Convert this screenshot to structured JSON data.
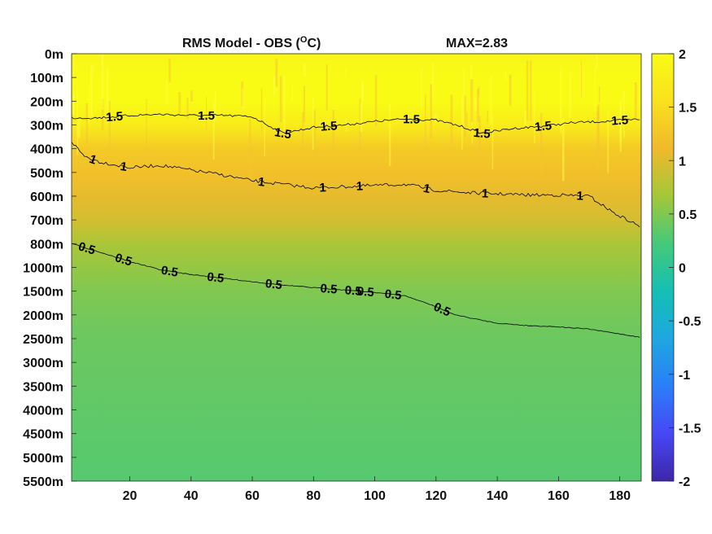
{
  "chart_data": {
    "type": "heatmap",
    "title": "RMS Model - OBS (",
    "title_unit_sup": "O",
    "title_unit_end": "C)",
    "max_label": "MAX=2.83",
    "x": {
      "range": [
        1,
        187
      ],
      "ticks": [
        20,
        40,
        60,
        80,
        100,
        120,
        140,
        160,
        180
      ]
    },
    "y": {
      "type": "categorical-depth",
      "ticks": [
        "0m",
        "100m",
        "200m",
        "300m",
        "400m",
        "500m",
        "600m",
        "700m",
        "800m",
        "1000m",
        "1500m",
        "2000m",
        "2500m",
        "3000m",
        "3500m",
        "4000m",
        "4500m",
        "5000m",
        "5500m"
      ]
    },
    "colorbar": {
      "range": [
        -2,
        2
      ],
      "ticks": [
        "2",
        "1.5",
        "1",
        "0.5",
        "0",
        "-0.5",
        "-1",
        "-1.5",
        "-2"
      ],
      "colormap": "parula",
      "stops": [
        "#3e26a8",
        "#4747f5",
        "#2b7ef8",
        "#1ea7e0",
        "#14bfb4",
        "#45c97a",
        "#a4c739",
        "#f0b92c",
        "#f9e11e",
        "#f9fb15"
      ]
    },
    "depth_profile_value": [
      [
        0,
        1.9
      ],
      [
        1,
        2.2
      ],
      [
        2,
        2.1
      ],
      [
        3,
        1.75
      ],
      [
        4,
        1.3
      ],
      [
        5,
        1.2
      ],
      [
        6,
        1.05
      ],
      [
        7,
        0.95
      ],
      [
        8,
        0.7
      ],
      [
        9,
        0.6
      ],
      [
        10,
        0.5
      ],
      [
        11,
        0.45
      ],
      [
        12,
        0.4
      ],
      [
        14,
        0.37
      ],
      [
        16,
        0.33
      ],
      [
        18,
        0.3
      ]
    ],
    "contours": [
      {
        "level": "1.5",
        "x": [
          1,
          10,
          20,
          30,
          40,
          50,
          60,
          65,
          70,
          80,
          90,
          100,
          110,
          120,
          128,
          135,
          145,
          155,
          165,
          175,
          187
        ],
        "y": [
          2.7,
          2.7,
          2.6,
          2.55,
          2.6,
          2.6,
          2.65,
          3.0,
          3.35,
          3.1,
          3.0,
          2.85,
          2.75,
          2.8,
          3.05,
          3.35,
          3.15,
          3.05,
          2.9,
          2.85,
          2.75
        ],
        "labels_at": [
          15,
          45,
          70,
          85,
          112,
          135,
          155,
          180
        ]
      },
      {
        "level": "1",
        "x": [
          1,
          5,
          10,
          20,
          30,
          40,
          50,
          60,
          70,
          80,
          90,
          100,
          110,
          120,
          130,
          140,
          150,
          160,
          170,
          178,
          187
        ],
        "y": [
          3.7,
          4.3,
          4.55,
          4.8,
          4.7,
          4.9,
          5.1,
          5.35,
          5.5,
          5.65,
          5.6,
          5.55,
          5.5,
          5.75,
          5.85,
          5.9,
          5.95,
          5.95,
          6.0,
          6.7,
          7.3
        ],
        "labels_at": [
          8,
          18,
          63,
          83,
          95,
          117,
          136,
          167
        ]
      },
      {
        "level": "0.5",
        "x": [
          1,
          10,
          20,
          30,
          40,
          50,
          60,
          70,
          80,
          90,
          100,
          110,
          120,
          125,
          130,
          140,
          150,
          160,
          170,
          180,
          187
        ],
        "y": [
          8.0,
          8.35,
          8.75,
          9.1,
          9.3,
          9.45,
          9.6,
          9.75,
          9.85,
          9.95,
          10.05,
          10.2,
          10.65,
          10.95,
          11.1,
          11.35,
          11.45,
          11.5,
          11.6,
          11.8,
          11.95
        ],
        "labels_at": [
          6,
          18,
          33,
          48,
          67,
          85,
          93,
          97,
          106,
          122
        ]
      }
    ]
  }
}
